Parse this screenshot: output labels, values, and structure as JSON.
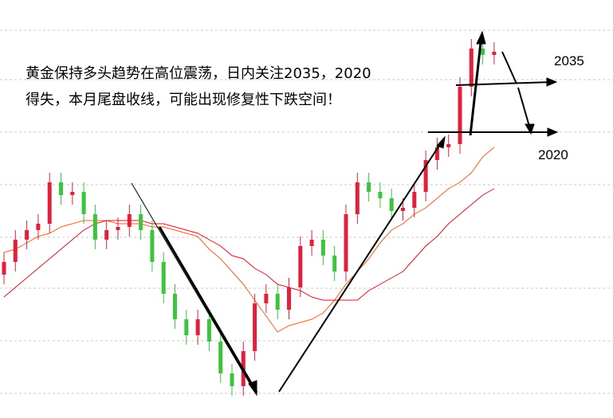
{
  "chart_data": {
    "type": "candlestick",
    "annotation": [
      "黄金保持多头趋势在高位震荡，日内关注2035，2020",
      "得失，本月尾盘收线，可能出现修复性下跌空间！"
    ],
    "levels": [
      {
        "value": 2035,
        "label": "2035"
      },
      {
        "value": 2020,
        "label": "2020"
      }
    ],
    "ylim": [
      1930,
      2061.25
    ],
    "up_color": "#e3203c",
    "down_color": "#3cc43c",
    "open": [
      1975,
      1979,
      1986,
      1989,
      1991,
      2004,
      2000,
      2001,
      1994,
      1986,
      1989,
      1990,
      1994,
      1989,
      1979,
      1969,
      1961,
      1956,
      1961,
      1954,
      1944,
      1940,
      1951,
      1966,
      1969,
      1964,
      1971,
      1984,
      1986,
      1981,
      1976,
      1994,
      2004,
      2001,
      1999,
      1995,
      1996,
      2001,
      2011,
      2015,
      2016,
      2034,
      2046,
      2044
    ],
    "high": [
      1982,
      1989,
      1992,
      1994,
      2007,
      2007,
      2004,
      2004,
      1997,
      1992,
      1993,
      1997,
      1997,
      1992,
      1982,
      1972,
      1964,
      1964,
      1964,
      1957,
      1947,
      1954,
      1969,
      1972,
      1972,
      1974,
      1987,
      1989,
      1989,
      1984,
      1997,
      2007,
      2007,
      2004,
      2002,
      1999,
      2004,
      2014,
      2018,
      2019,
      2037,
      2049,
      2049,
      2048
    ],
    "low": [
      1972,
      1976,
      1983,
      1986,
      1988,
      1997,
      1997,
      1991,
      1983,
      1983,
      1986,
      1987,
      1986,
      1976,
      1966,
      1958,
      1953,
      1953,
      1951,
      1941,
      1937,
      1937,
      1948,
      1963,
      1961,
      1961,
      1968,
      1981,
      1978,
      1973,
      1973,
      1991,
      1998,
      1996,
      1992,
      1992,
      1993,
      1998,
      2008,
      2012,
      2013,
      2031,
      2041,
      2041
    ],
    "close": [
      1979,
      1986,
      1989,
      1991,
      2004,
      2000,
      2001,
      1994,
      1986,
      1989,
      1990,
      1994,
      1989,
      1979,
      1969,
      1961,
      1956,
      1961,
      1954,
      1944,
      1940,
      1951,
      1966,
      1969,
      1964,
      1971,
      1984,
      1986,
      1981,
      1976,
      1994,
      2004,
      2001,
      1999,
      1995,
      1996,
      2001,
      2011,
      2015,
      2016,
      2034,
      2046,
      2044,
      2045
    ],
    "lines": [
      {
        "color": "#ff5a1e",
        "values": [
          1982,
          1983,
          1985,
          1987,
          1988,
          1990,
          1991,
          1992,
          1992,
          1992,
          1991,
          1991,
          1991,
          1990,
          1990,
          1989,
          1988,
          1987,
          1983,
          1980,
          1976,
          1972,
          1967,
          1962,
          1957,
          1959,
          1960,
          1961,
          1963,
          1967,
          1972,
          1976,
          1980,
          1985,
          1989,
          1991,
          1994,
          1996,
          1999,
          2002,
          2004,
          2007,
          2012,
          2015
        ]
      },
      {
        "color": "#e0102a",
        "values": [
          1968,
          1971,
          1974,
          1977,
          1980,
          1983,
          1986,
          1989,
          1991,
          1992,
          1992,
          1992,
          1992,
          1991,
          1991,
          1990,
          1989,
          1988,
          1986,
          1984,
          1981,
          1980,
          1977,
          1975,
          1972,
          1971,
          1970,
          1968,
          1967,
          1967,
          1967,
          1967,
          1970,
          1972,
          1974,
          1976,
          1980,
          1984,
          1987,
          1991,
          1994,
          1997,
          2000,
          2002
        ]
      }
    ]
  }
}
